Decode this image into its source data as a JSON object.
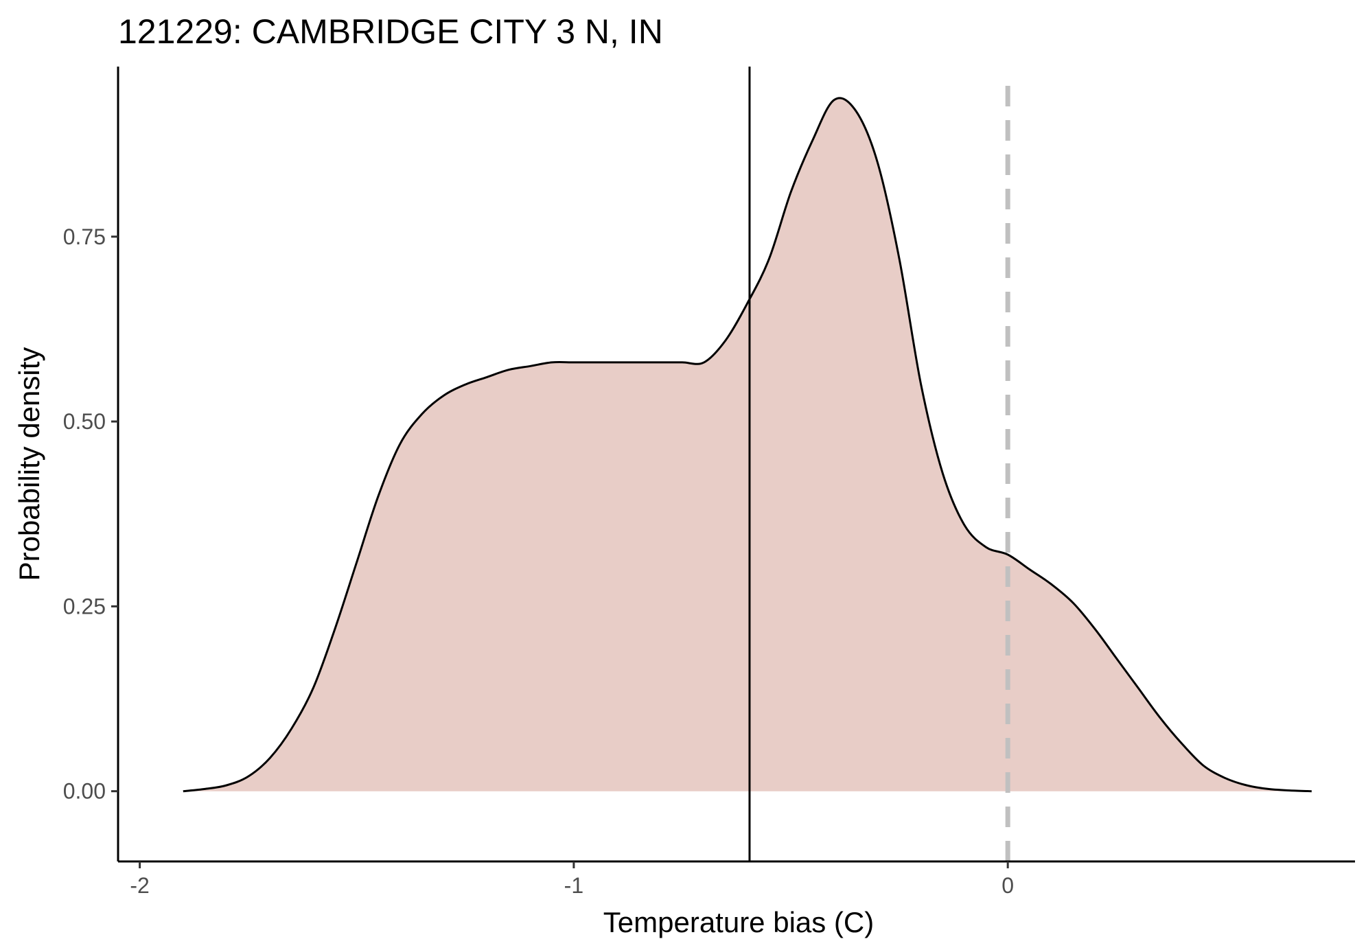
{
  "chart_data": {
    "type": "area",
    "title": "121229: CAMBRIDGE CITY 3 N, IN",
    "xlabel": "Temperature bias (C)",
    "ylabel": "Probability density",
    "xlim": [
      -2.05,
      0.8
    ],
    "ylim": [
      -0.095,
      0.98
    ],
    "x_ticks": [
      {
        "value": -2,
        "label": "-2"
      },
      {
        "value": -1,
        "label": "-1"
      },
      {
        "value": 0,
        "label": "0"
      }
    ],
    "y_ticks": [
      {
        "value": 0.0,
        "label": "0.00"
      },
      {
        "value": 0.25,
        "label": "0.25"
      },
      {
        "value": 0.5,
        "label": "0.50"
      },
      {
        "value": 0.75,
        "label": "0.75"
      }
    ],
    "grid": false,
    "legend": "none",
    "series": [
      {
        "fill_color": "#e8cdc7",
        "line_color": "#000000",
        "x": [
          -1.9,
          -1.85,
          -1.8,
          -1.75,
          -1.7,
          -1.65,
          -1.6,
          -1.55,
          -1.5,
          -1.45,
          -1.4,
          -1.35,
          -1.3,
          -1.25,
          -1.2,
          -1.15,
          -1.1,
          -1.05,
          -1.0,
          -0.95,
          -0.9,
          -0.85,
          -0.8,
          -0.75,
          -0.7,
          -0.65,
          -0.6,
          -0.55,
          -0.5,
          -0.45,
          -0.4,
          -0.35,
          -0.3,
          -0.25,
          -0.2,
          -0.15,
          -0.1,
          -0.05,
          0.0,
          0.05,
          0.1,
          0.15,
          0.2,
          0.25,
          0.3,
          0.35,
          0.4,
          0.45,
          0.5,
          0.55,
          0.6,
          0.65,
          0.7
        ],
        "y": [
          0.0,
          0.003,
          0.008,
          0.02,
          0.045,
          0.085,
          0.14,
          0.22,
          0.31,
          0.4,
          0.47,
          0.51,
          0.535,
          0.55,
          0.56,
          0.57,
          0.575,
          0.58,
          0.58,
          0.58,
          0.58,
          0.58,
          0.58,
          0.58,
          0.58,
          0.61,
          0.66,
          0.72,
          0.81,
          0.88,
          0.935,
          0.92,
          0.85,
          0.72,
          0.55,
          0.43,
          0.36,
          0.33,
          0.32,
          0.3,
          0.28,
          0.255,
          0.22,
          0.18,
          0.14,
          0.1,
          0.065,
          0.035,
          0.018,
          0.008,
          0.003,
          0.001,
          0.0
        ]
      }
    ],
    "reference_lines": [
      {
        "x": -0.595,
        "style": "solid",
        "color": "#000000"
      },
      {
        "x": 0.0,
        "style": "dashed",
        "color": "#c0c0c0"
      }
    ]
  }
}
